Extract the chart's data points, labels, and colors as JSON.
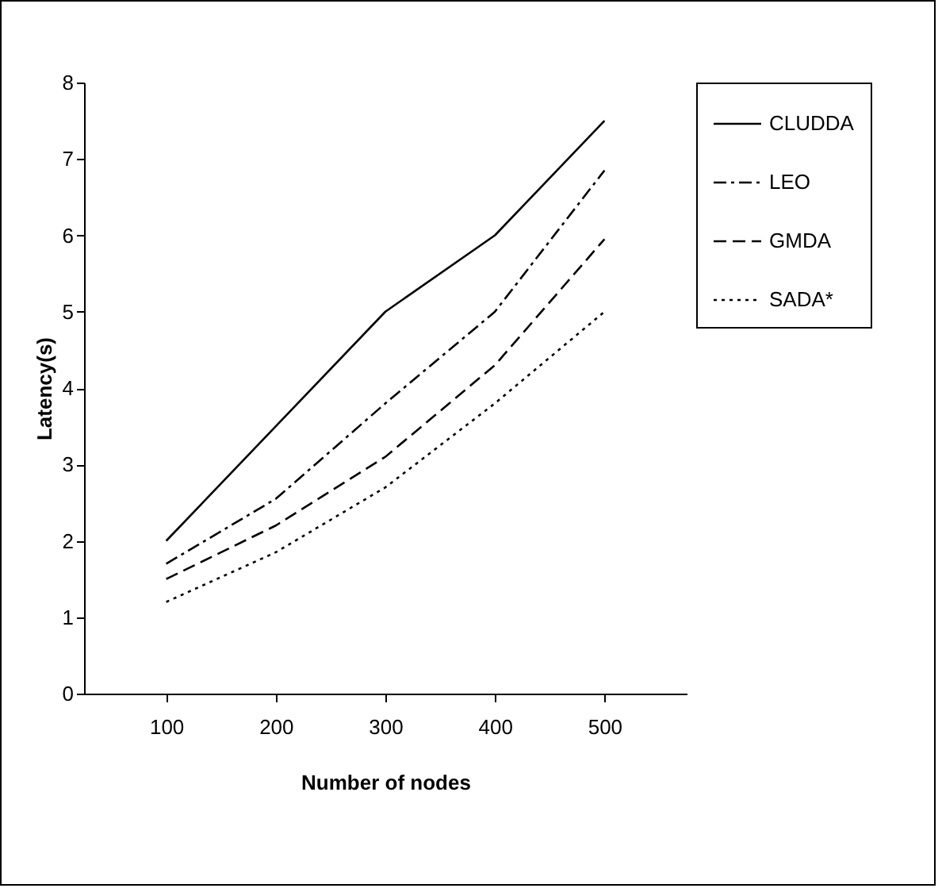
{
  "chart_data": {
    "type": "line",
    "xlabel": "Number of nodes",
    "ylabel": "Latency(s)",
    "categories": [
      "100",
      "200",
      "300",
      "400",
      "500"
    ],
    "ylim": [
      0,
      8
    ],
    "yticks": [
      0,
      1,
      2,
      3,
      4,
      5,
      6,
      7,
      8
    ],
    "grid": false,
    "legend": "right",
    "marker": "none",
    "series": [
      {
        "name": "CLUDDA",
        "color": "#000000",
        "line_style": "solid",
        "values": [
          2.0,
          3.5,
          5.0,
          6.0,
          7.5
        ]
      },
      {
        "name": "LEO",
        "color": "#000000",
        "line_style": "dashdot",
        "values": [
          1.7,
          2.55,
          3.8,
          5.0,
          6.85
        ]
      },
      {
        "name": "GMDA",
        "color": "#000000",
        "line_style": "dashed",
        "values": [
          1.5,
          2.2,
          3.1,
          4.3,
          5.95
        ]
      },
      {
        "name": "SADA*",
        "color": "#000000",
        "line_style": "dotted",
        "values": [
          1.2,
          1.85,
          2.7,
          3.8,
          5.0
        ]
      }
    ]
  }
}
